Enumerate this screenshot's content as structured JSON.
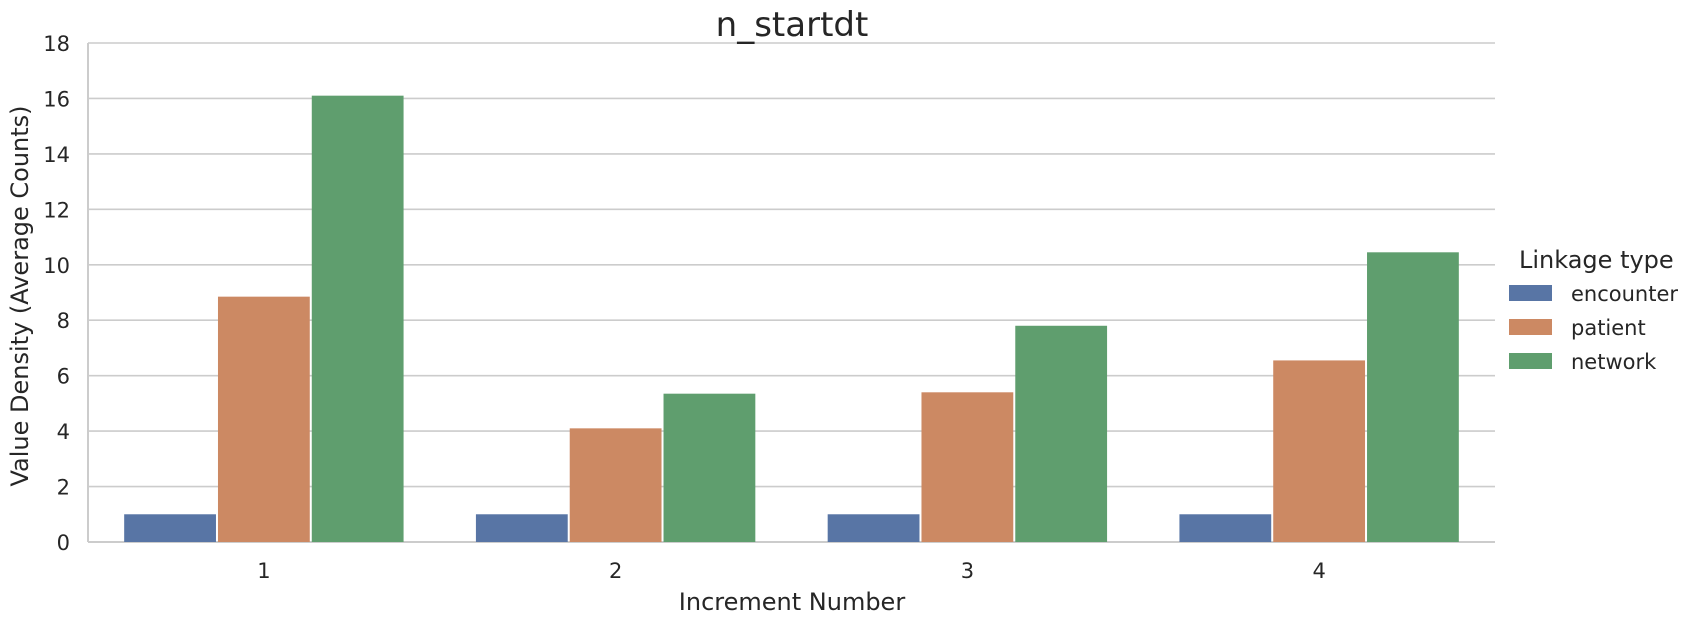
{
  "chart_data": {
    "type": "bar",
    "title": "n_startdt",
    "xlabel": "Increment Number",
    "ylabel": "Value Density (Average Counts)",
    "categories": [
      "1",
      "2",
      "3",
      "4"
    ],
    "ylim": [
      0,
      18
    ],
    "yticks": [
      "0",
      "2",
      "4",
      "6",
      "8",
      "10",
      "12",
      "14",
      "16",
      "18"
    ],
    "grid": "horizontal",
    "legend": {
      "title": "Linkage type",
      "placement": "right"
    },
    "series": [
      {
        "name": "encounter",
        "color": "#5875a5",
        "values": [
          1.0,
          1.0,
          1.0,
          1.0
        ]
      },
      {
        "name": "patient",
        "color": "#cc8963",
        "values": [
          8.85,
          4.1,
          5.4,
          6.55
        ]
      },
      {
        "name": "network",
        "color": "#5f9e6e",
        "values": [
          16.1,
          5.35,
          7.8,
          10.45
        ]
      }
    ]
  }
}
